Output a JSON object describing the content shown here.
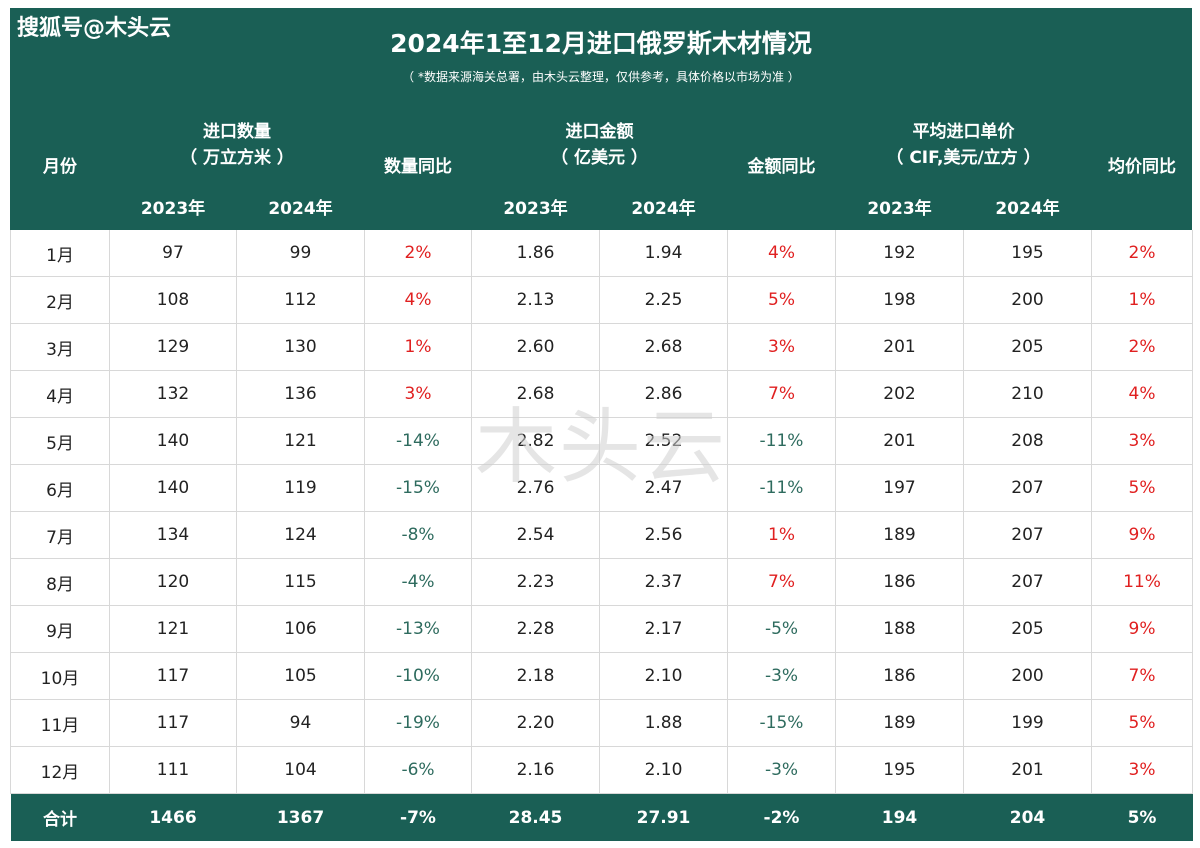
{
  "brand": "搜狐号@木头云",
  "title": "2024年1至12月进口俄罗斯木材情况",
  "subtitle": "（ *数据来源海关总署，由木头云整理，仅供参考，具体价格以市场为准 ）",
  "watermark": "木头云",
  "header": {
    "month": "月份",
    "qty_l1": "进口数量",
    "qty_l2": "（ 万立方米 ）",
    "qty_yoy": "数量同比",
    "amt_l1": "进口金额",
    "amt_l2": "（ 亿美元 ）",
    "amt_yoy": "金额同比",
    "price_l1": "平均进口单价",
    "price_l2": "（ CIF,美元/立方 ）",
    "price_yoy": "均价同比",
    "y2023": "2023年",
    "y2024": "2024年"
  },
  "rows": [
    {
      "month": "1月",
      "q23": "97",
      "q24": "99",
      "qy": "2%",
      "a23": "1.86",
      "a24": "1.94",
      "ay": "4%",
      "p23": "192",
      "p24": "195",
      "py": "2%"
    },
    {
      "month": "2月",
      "q23": "108",
      "q24": "112",
      "qy": "4%",
      "a23": "2.13",
      "a24": "2.25",
      "ay": "5%",
      "p23": "198",
      "p24": "200",
      "py": "1%"
    },
    {
      "month": "3月",
      "q23": "129",
      "q24": "130",
      "qy": "1%",
      "a23": "2.60",
      "a24": "2.68",
      "ay": "3%",
      "p23": "201",
      "p24": "205",
      "py": "2%"
    },
    {
      "month": "4月",
      "q23": "132",
      "q24": "136",
      "qy": "3%",
      "a23": "2.68",
      "a24": "2.86",
      "ay": "7%",
      "p23": "202",
      "p24": "210",
      "py": "4%"
    },
    {
      "month": "5月",
      "q23": "140",
      "q24": "121",
      "qy": "-14%",
      "a23": "2.82",
      "a24": "2.52",
      "ay": "-11%",
      "p23": "201",
      "p24": "208",
      "py": "3%"
    },
    {
      "month": "6月",
      "q23": "140",
      "q24": "119",
      "qy": "-15%",
      "a23": "2.76",
      "a24": "2.47",
      "ay": "-11%",
      "p23": "197",
      "p24": "207",
      "py": "5%"
    },
    {
      "month": "7月",
      "q23": "134",
      "q24": "124",
      "qy": "-8%",
      "a23": "2.54",
      "a24": "2.56",
      "ay": "1%",
      "p23": "189",
      "p24": "207",
      "py": "9%"
    },
    {
      "month": "8月",
      "q23": "120",
      "q24": "115",
      "qy": "-4%",
      "a23": "2.23",
      "a24": "2.37",
      "ay": "7%",
      "p23": "186",
      "p24": "207",
      "py": "11%"
    },
    {
      "month": "9月",
      "q23": "121",
      "q24": "106",
      "qy": "-13%",
      "a23": "2.28",
      "a24": "2.17",
      "ay": "-5%",
      "p23": "188",
      "p24": "205",
      "py": "9%"
    },
    {
      "month": "10月",
      "q23": "117",
      "q24": "105",
      "qy": "-10%",
      "a23": "2.18",
      "a24": "2.10",
      "ay": "-3%",
      "p23": "186",
      "p24": "200",
      "py": "7%"
    },
    {
      "month": "11月",
      "q23": "117",
      "q24": "94",
      "qy": "-19%",
      "a23": "2.20",
      "a24": "1.88",
      "ay": "-15%",
      "p23": "189",
      "p24": "199",
      "py": "5%"
    },
    {
      "month": "12月",
      "q23": "111",
      "q24": "104",
      "qy": "-6%",
      "a23": "2.16",
      "a24": "2.10",
      "ay": "-3%",
      "p23": "195",
      "p24": "201",
      "py": "3%"
    }
  ],
  "total": {
    "month": "合计",
    "q23": "1466",
    "q24": "1367",
    "qy": "-7%",
    "a23": "28.45",
    "a24": "27.91",
    "ay": "-2%",
    "p23": "194",
    "p24": "204",
    "py": "5%"
  },
  "colors": {
    "header_bg": "#1a5f55",
    "positive": "#e02020",
    "negative": "#2e6b5e",
    "grid": "#d8d8d8"
  }
}
